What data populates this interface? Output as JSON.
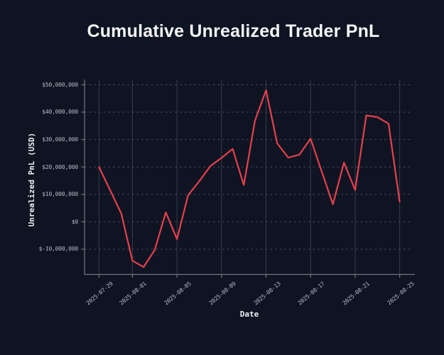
{
  "colors": {
    "background": "#0e1422",
    "line": "#e6404e",
    "grid_vertical": "#353c49",
    "grid_horizontal": "#4a505c",
    "spine": "#6f7580",
    "tick_mark": "#6f7580",
    "tick_label": "#b4bac5",
    "axis_label": "#edeff3",
    "title": "#f4f5f8"
  },
  "chart_data": {
    "type": "line",
    "title": "Cumulative Unrealized Trader PnL",
    "xlabel": "Date",
    "ylabel": "Unrealized PnL (USD)",
    "legend": "none",
    "grid": {
      "vertical": "solid",
      "horizontal": "dashed"
    },
    "dates": [
      "2025-07-29",
      "2025-07-30",
      "2025-07-31",
      "2025-08-01",
      "2025-08-02",
      "2025-08-03",
      "2025-08-04",
      "2025-08-05",
      "2025-08-06",
      "2025-08-07",
      "2025-08-08",
      "2025-08-09",
      "2025-08-10",
      "2025-08-11",
      "2025-08-12",
      "2025-08-13",
      "2025-08-14",
      "2025-08-15",
      "2025-08-16",
      "2025-08-17",
      "2025-08-18",
      "2025-08-19",
      "2025-08-20",
      "2025-08-21",
      "2025-08-22",
      "2025-08-23",
      "2025-08-24",
      "2025-08-25"
    ],
    "values_usd": [
      20000000,
      11500000,
      3000000,
      -14200000,
      -16500000,
      -10300000,
      3400000,
      -6300000,
      9700000,
      14800000,
      20300000,
      23300000,
      26600000,
      13400000,
      36800000,
      48000000,
      28600000,
      23400000,
      24500000,
      30300000,
      18300000,
      6400000,
      21600000,
      11600000,
      38800000,
      38200000,
      35800000,
      7300000
    ],
    "x_tick_labels": [
      "2025-07-29",
      "2025-08-01",
      "2025-08-05",
      "2025-08-09",
      "2025-08-13",
      "2025-08-17",
      "2025-08-21",
      "2025-08-25"
    ],
    "x_tick_day_index": [
      0,
      3,
      7,
      11,
      15,
      19,
      23,
      27
    ],
    "y_tick_values": [
      50000000,
      40000000,
      30000000,
      20000000,
      10000000,
      0,
      -10000000
    ],
    "y_tick_labels": [
      "$50,000,000",
      "$40,000,000",
      "$30,000,000",
      "$20,000,000",
      "$10,000,000",
      "$0",
      "$-10,000,000"
    ],
    "ylim": [
      -19200000,
      51900000
    ],
    "xlim_day_index": [
      -1.3,
      28.3
    ]
  }
}
